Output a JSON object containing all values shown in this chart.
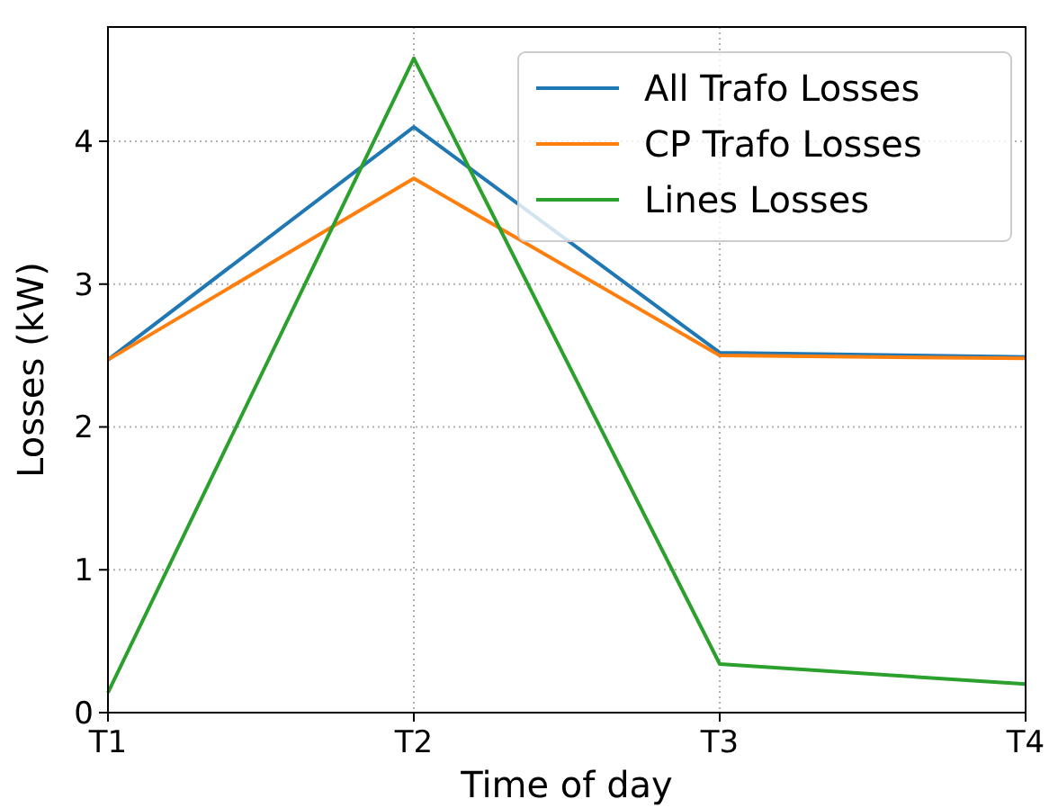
{
  "chart_data": {
    "type": "line",
    "xlabel": "Time of day",
    "ylabel": "Losses (kW)",
    "categories": [
      "T1",
      "T2",
      "T3",
      "T4"
    ],
    "series": [
      {
        "name": "All Trafo Losses",
        "color": "#1f77b4",
        "values": [
          2.47,
          4.1,
          2.52,
          2.49
        ]
      },
      {
        "name": "CP Trafo Losses",
        "color": "#ff7f0e",
        "values": [
          2.47,
          3.74,
          2.5,
          2.48
        ]
      },
      {
        "name": "Lines Losses",
        "color": "#2ca02c",
        "values": [
          0.14,
          4.58,
          0.34,
          0.2
        ]
      }
    ],
    "ylim": [
      0,
      4.8
    ],
    "yticks": [
      0,
      1,
      2,
      3,
      4
    ],
    "grid": true,
    "legend": "top right"
  }
}
